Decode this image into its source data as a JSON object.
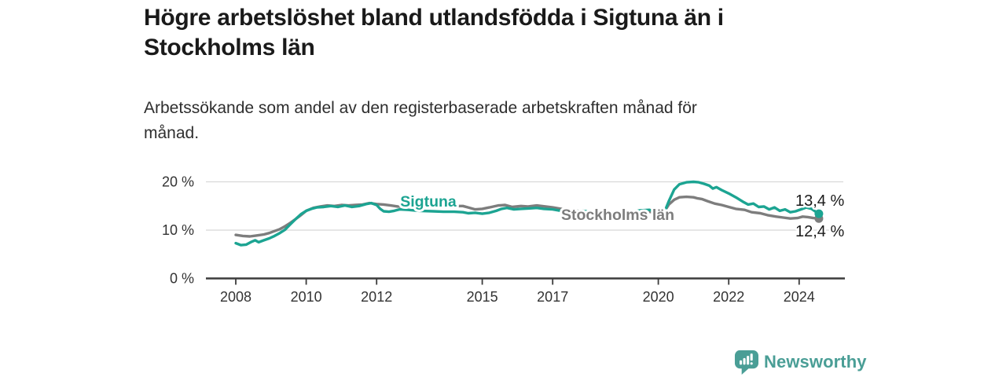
{
  "header": {
    "title_lines": [
      "Högre arbetslöshet bland utlandsfödda i Sigtuna än i",
      "Stockholms län"
    ],
    "subtitle_lines": [
      "Arbetssökande som andel av den registerbaserade arbetskraften månad för",
      "månad."
    ]
  },
  "colors": {
    "sigtuna": "#1ca492",
    "stockholm": "#7d7d7d",
    "grid": "#d8d8d8",
    "axis": "#3b3b3b",
    "axis_text": "#333333",
    "value_label_text": "#1a1a1a",
    "logo_teal": "#4a9e96",
    "background": "#ffffff"
  },
  "chart_data": {
    "type": "line",
    "title": "Högre arbetslöshet bland utlandsfödda i Sigtuna än i Stockholms län",
    "subtitle": "Arbetssökande som andel av den registerbaserade arbetskraften månad för månad.",
    "grid": "horizontal-only",
    "legend_position": "inline-labels-on-lines",
    "x_axis": {
      "ticks": [
        2008,
        2010,
        2012,
        2015,
        2017,
        2020,
        2022,
        2024
      ],
      "tick_labels": [
        "2008",
        "2010",
        "2012",
        "2015",
        "2017",
        "2020",
        "2022",
        "2024"
      ],
      "range": [
        2007.15,
        2025.25
      ]
    },
    "y_axis": {
      "ticks": [
        0,
        10,
        20
      ],
      "tick_labels": [
        "0 %",
        "10 %",
        "20 %"
      ],
      "range": [
        0,
        22
      ],
      "unit": "%"
    },
    "series": [
      {
        "name": "Stockholms län",
        "color": "#7d7d7d",
        "end_value": 12.4,
        "end_label": "12,4 %",
        "points": [
          [
            2008.0,
            9.0
          ],
          [
            2008.2,
            8.8
          ],
          [
            2008.4,
            8.7
          ],
          [
            2008.6,
            8.9
          ],
          [
            2008.8,
            9.1
          ],
          [
            2008.95,
            9.4
          ],
          [
            2009.1,
            9.8
          ],
          [
            2009.25,
            10.2
          ],
          [
            2009.4,
            10.8
          ],
          [
            2009.55,
            11.5
          ],
          [
            2009.7,
            12.3
          ],
          [
            2009.85,
            13.1
          ],
          [
            2010.0,
            14.0
          ],
          [
            2010.2,
            14.6
          ],
          [
            2010.4,
            14.9
          ],
          [
            2010.6,
            15.1
          ],
          [
            2010.8,
            15.0
          ],
          [
            2011.0,
            15.2
          ],
          [
            2011.2,
            15.1
          ],
          [
            2011.4,
            15.2
          ],
          [
            2011.6,
            15.3
          ],
          [
            2011.8,
            15.6
          ],
          [
            2012.0,
            15.4
          ],
          [
            2012.2,
            15.3
          ],
          [
            2012.4,
            15.1
          ],
          [
            2012.6,
            14.9
          ],
          [
            2012.9,
            14.9
          ],
          [
            2013.3,
            15.0
          ],
          [
            2013.7,
            15.0
          ],
          [
            2014.1,
            15.0
          ],
          [
            2014.45,
            15.0
          ],
          [
            2014.6,
            14.7
          ],
          [
            2014.8,
            14.3
          ],
          [
            2015.0,
            14.4
          ],
          [
            2015.2,
            14.7
          ],
          [
            2015.45,
            15.1
          ],
          [
            2015.65,
            15.2
          ],
          [
            2015.85,
            14.8
          ],
          [
            2016.1,
            15.0
          ],
          [
            2016.3,
            14.9
          ],
          [
            2016.55,
            15.1
          ],
          [
            2016.8,
            14.9
          ],
          [
            2017.0,
            14.7
          ],
          [
            2017.4,
            14.2
          ],
          [
            2017.8,
            13.9
          ],
          [
            2018.2,
            13.6
          ],
          [
            2018.6,
            13.4
          ],
          [
            2019.0,
            13.5
          ],
          [
            2019.4,
            13.7
          ],
          [
            2019.75,
            13.8
          ],
          [
            2020.0,
            13.4
          ],
          [
            2020.15,
            13.6
          ],
          [
            2020.3,
            15.3
          ],
          [
            2020.45,
            16.3
          ],
          [
            2020.6,
            16.8
          ],
          [
            2020.8,
            16.9
          ],
          [
            2021.0,
            16.8
          ],
          [
            2021.1,
            16.6
          ],
          [
            2021.25,
            16.4
          ],
          [
            2021.4,
            16.0
          ],
          [
            2021.6,
            15.5
          ],
          [
            2021.8,
            15.2
          ],
          [
            2022.0,
            14.8
          ],
          [
            2022.2,
            14.4
          ],
          [
            2022.45,
            14.2
          ],
          [
            2022.65,
            13.7
          ],
          [
            2022.9,
            13.5
          ],
          [
            2023.1,
            13.1
          ],
          [
            2023.35,
            12.8
          ],
          [
            2023.55,
            12.6
          ],
          [
            2023.75,
            12.4
          ],
          [
            2023.95,
            12.5
          ],
          [
            2024.1,
            12.8
          ],
          [
            2024.25,
            12.7
          ],
          [
            2024.4,
            12.5
          ],
          [
            2024.56,
            12.4
          ]
        ]
      },
      {
        "name": "Sigtuna",
        "color": "#1ca492",
        "end_value": 13.4,
        "end_label": "13,4 %",
        "points": [
          [
            2008.0,
            7.3
          ],
          [
            2008.15,
            6.9
          ],
          [
            2008.3,
            7.0
          ],
          [
            2008.45,
            7.6
          ],
          [
            2008.55,
            7.9
          ],
          [
            2008.65,
            7.5
          ],
          [
            2008.8,
            7.9
          ],
          [
            2008.95,
            8.3
          ],
          [
            2009.1,
            8.8
          ],
          [
            2009.25,
            9.4
          ],
          [
            2009.4,
            10.1
          ],
          [
            2009.55,
            11.2
          ],
          [
            2009.7,
            12.3
          ],
          [
            2009.85,
            13.3
          ],
          [
            2010.0,
            14.0
          ],
          [
            2010.15,
            14.4
          ],
          [
            2010.3,
            14.7
          ],
          [
            2010.5,
            14.8
          ],
          [
            2010.7,
            15.0
          ],
          [
            2010.9,
            14.8
          ],
          [
            2011.1,
            15.1
          ],
          [
            2011.3,
            14.8
          ],
          [
            2011.5,
            15.0
          ],
          [
            2011.7,
            15.4
          ],
          [
            2011.85,
            15.6
          ],
          [
            2012.0,
            15.2
          ],
          [
            2012.1,
            14.4
          ],
          [
            2012.2,
            13.9
          ],
          [
            2012.35,
            13.8
          ],
          [
            2012.5,
            14.0
          ],
          [
            2012.65,
            14.3
          ],
          [
            2012.9,
            14.2
          ],
          [
            2013.2,
            14.0
          ],
          [
            2013.6,
            13.9
          ],
          [
            2013.9,
            13.8
          ],
          [
            2014.2,
            13.8
          ],
          [
            2014.45,
            13.7
          ],
          [
            2014.6,
            13.5
          ],
          [
            2014.8,
            13.6
          ],
          [
            2015.0,
            13.4
          ],
          [
            2015.2,
            13.6
          ],
          [
            2015.4,
            14.0
          ],
          [
            2015.55,
            14.4
          ],
          [
            2015.7,
            14.6
          ],
          [
            2015.9,
            14.3
          ],
          [
            2016.1,
            14.4
          ],
          [
            2016.35,
            14.5
          ],
          [
            2016.55,
            14.6
          ],
          [
            2016.75,
            14.4
          ],
          [
            2017.0,
            14.3
          ],
          [
            2017.3,
            13.9
          ],
          [
            2017.6,
            13.8
          ],
          [
            2017.85,
            14.0
          ],
          [
            2018.2,
            13.7
          ],
          [
            2018.6,
            13.5
          ],
          [
            2018.9,
            13.6
          ],
          [
            2019.2,
            13.8
          ],
          [
            2019.5,
            14.1
          ],
          [
            2019.75,
            14.2
          ],
          [
            2020.0,
            13.6
          ],
          [
            2020.15,
            13.3
          ],
          [
            2020.3,
            16.0
          ],
          [
            2020.45,
            18.4
          ],
          [
            2020.6,
            19.5
          ],
          [
            2020.8,
            19.9
          ],
          [
            2021.0,
            20.0
          ],
          [
            2021.15,
            19.9
          ],
          [
            2021.3,
            19.6
          ],
          [
            2021.45,
            19.2
          ],
          [
            2021.55,
            18.6
          ],
          [
            2021.65,
            18.9
          ],
          [
            2021.8,
            18.3
          ],
          [
            2022.0,
            17.6
          ],
          [
            2022.2,
            16.8
          ],
          [
            2022.4,
            15.9
          ],
          [
            2022.55,
            15.3
          ],
          [
            2022.7,
            15.5
          ],
          [
            2022.85,
            14.8
          ],
          [
            2023.0,
            14.9
          ],
          [
            2023.15,
            14.3
          ],
          [
            2023.3,
            14.7
          ],
          [
            2023.45,
            14.0
          ],
          [
            2023.6,
            14.3
          ],
          [
            2023.75,
            13.7
          ],
          [
            2023.9,
            13.9
          ],
          [
            2024.05,
            14.3
          ],
          [
            2024.2,
            14.7
          ],
          [
            2024.35,
            14.4
          ],
          [
            2024.45,
            13.9
          ],
          [
            2024.56,
            13.4
          ]
        ]
      }
    ]
  },
  "branding": {
    "logo_text": "Newsworthy",
    "logo_icon": "bar-chart-speech-bubble-icon"
  }
}
